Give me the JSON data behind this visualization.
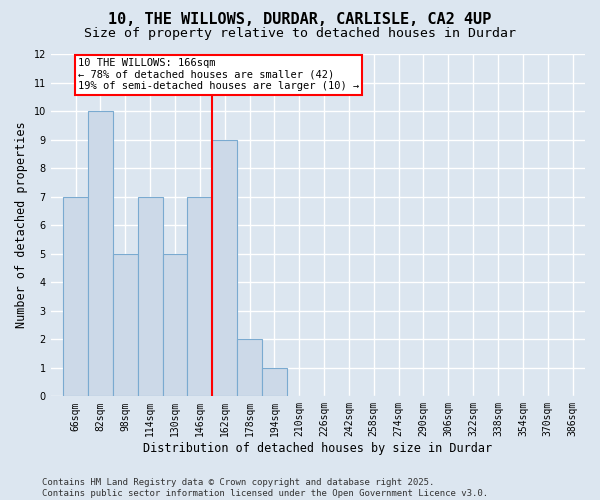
{
  "title": "10, THE WILLOWS, DURDAR, CARLISLE, CA2 4UP",
  "subtitle": "Size of property relative to detached houses in Durdar",
  "xlabel": "Distribution of detached houses by size in Durdar",
  "ylabel": "Number of detached properties",
  "categories": [
    "66sqm",
    "82sqm",
    "98sqm",
    "114sqm",
    "130sqm",
    "146sqm",
    "162sqm",
    "178sqm",
    "194sqm",
    "210sqm",
    "226sqm",
    "242sqm",
    "258sqm",
    "274sqm",
    "290sqm",
    "306sqm",
    "322sqm",
    "338sqm",
    "354sqm",
    "370sqm",
    "386sqm"
  ],
  "values": [
    7,
    10,
    5,
    7,
    5,
    7,
    9,
    2,
    1,
    0,
    0,
    0,
    0,
    0,
    0,
    0,
    0,
    0,
    0,
    0,
    0
  ],
  "bar_color": "#ccd9e8",
  "bar_edge_color": "#7aaad0",
  "ylim": [
    0,
    12
  ],
  "yticks": [
    0,
    1,
    2,
    3,
    4,
    5,
    6,
    7,
    8,
    9,
    10,
    11,
    12
  ],
  "red_line_index": 6,
  "annotation_title": "10 THE WILLOWS: 166sqm",
  "annotation_line1": "← 78% of detached houses are smaller (42)",
  "annotation_line2": "19% of semi-detached houses are larger (10) →",
  "footer_line1": "Contains HM Land Registry data © Crown copyright and database right 2025.",
  "footer_line2": "Contains public sector information licensed under the Open Government Licence v3.0.",
  "background_color": "#dce6f0",
  "grid_color": "#ffffff",
  "title_fontsize": 11,
  "subtitle_fontsize": 9.5,
  "axis_fontsize": 8.5,
  "tick_fontsize": 7,
  "footer_fontsize": 6.5
}
